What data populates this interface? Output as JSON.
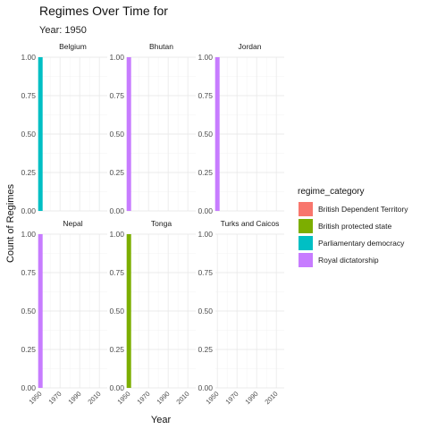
{
  "chart_data": {
    "type": "bar",
    "title": "Regimes Over Time for",
    "subtitle": "Year: 1950",
    "xlabel": "Year",
    "ylabel": "Count of Regimes",
    "x_ticks": [
      1950,
      1970,
      1990,
      2010
    ],
    "xlim": [
      1948,
      2018
    ],
    "y_ticks": [
      "0.00",
      "0.25",
      "0.50",
      "0.75",
      "1.00"
    ],
    "ylim": [
      0,
      1
    ],
    "facets": [
      {
        "name": "Belgium",
        "bars": [
          {
            "x": 1950,
            "value": 1,
            "category": "Parliamentary democracy"
          }
        ]
      },
      {
        "name": "Bhutan",
        "bars": [
          {
            "x": 1950,
            "value": 1,
            "category": "Royal dictatorship"
          }
        ]
      },
      {
        "name": "Jordan",
        "bars": [
          {
            "x": 1950,
            "value": 1,
            "category": "Royal dictatorship"
          }
        ]
      },
      {
        "name": "Nepal",
        "bars": [
          {
            "x": 1950,
            "value": 1,
            "category": "Royal dictatorship"
          }
        ]
      },
      {
        "name": "Tonga",
        "bars": [
          {
            "x": 1950,
            "value": 1,
            "category": "British protected state"
          }
        ]
      },
      {
        "name": "Turks and Caicos",
        "bars": []
      }
    ],
    "legend": {
      "title": "regime_category",
      "position": "right",
      "entries": [
        {
          "label": "British Dependent Territory",
          "color": "#F8766D"
        },
        {
          "label": "British protected state",
          "color": "#7CAE00"
        },
        {
          "label": "Parliamentary democracy",
          "color": "#00BFC4"
        },
        {
          "label": "Royal dictatorship",
          "color": "#C77CFF"
        }
      ]
    },
    "grid": true
  }
}
